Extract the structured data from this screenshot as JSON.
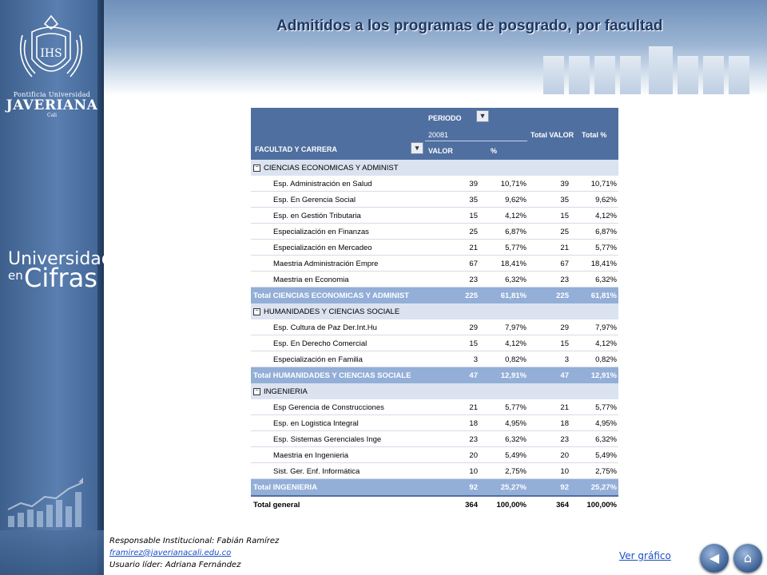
{
  "sidebar": {
    "institution_line1": "Pontificia Universidad",
    "institution_line2": "JAVERIANA",
    "institution_line3": "Cali",
    "brand_line1": "Universidad",
    "brand_line2": "en",
    "brand_line3": "Cifras"
  },
  "header": {
    "title": "Admitidos a los programas de posgrado, por facultad"
  },
  "pivot": {
    "periodo_label": "PERIODO",
    "period_value": "20081",
    "total_valor_label": "Total VALOR",
    "total_pct_label": "Total %",
    "row_field_label": "FACULTAD Y CARRERA",
    "valor_label": "VALOR",
    "pct_label": "%",
    "groups": [
      {
        "name": "CIENCIAS ECONOMICAS Y ADMINIST",
        "items": [
          {
            "name": "Esp. Administración en Salud",
            "valor": "39",
            "pct": "10,71%",
            "tvalor": "39",
            "tpct": "10,71%"
          },
          {
            "name": "Esp. En Gerencia Social",
            "valor": "35",
            "pct": "9,62%",
            "tvalor": "35",
            "tpct": "9,62%"
          },
          {
            "name": "Esp. en Gestión Tributaria",
            "valor": "15",
            "pct": "4,12%",
            "tvalor": "15",
            "tpct": "4,12%"
          },
          {
            "name": "Especialización en Finanzas",
            "valor": "25",
            "pct": "6,87%",
            "tvalor": "25",
            "tpct": "6,87%"
          },
          {
            "name": "Especialización en Mercadeo",
            "valor": "21",
            "pct": "5,77%",
            "tvalor": "21",
            "tpct": "5,77%"
          },
          {
            "name": "Maestria Administración Empre",
            "valor": "67",
            "pct": "18,41%",
            "tvalor": "67",
            "tpct": "18,41%"
          },
          {
            "name": "Maestria en Economia",
            "valor": "23",
            "pct": "6,32%",
            "tvalor": "23",
            "tpct": "6,32%"
          }
        ],
        "total": {
          "name": "Total CIENCIAS ECONOMICAS Y ADMINIST",
          "valor": "225",
          "pct": "61,81%",
          "tvalor": "225",
          "tpct": "61,81%"
        }
      },
      {
        "name": "HUMANIDADES Y CIENCIAS SOCIALE",
        "items": [
          {
            "name": "Esp. Cultura de Paz Der.Int.Hu",
            "valor": "29",
            "pct": "7,97%",
            "tvalor": "29",
            "tpct": "7,97%"
          },
          {
            "name": "Esp. En Derecho Comercial",
            "valor": "15",
            "pct": "4,12%",
            "tvalor": "15",
            "tpct": "4,12%"
          },
          {
            "name": "Especialización en Familia",
            "valor": "3",
            "pct": "0,82%",
            "tvalor": "3",
            "tpct": "0,82%"
          }
        ],
        "total": {
          "name": "Total HUMANIDADES Y CIENCIAS SOCIALE",
          "valor": "47",
          "pct": "12,91%",
          "tvalor": "47",
          "tpct": "12,91%"
        }
      },
      {
        "name": "INGENIERIA",
        "items": [
          {
            "name": "Esp Gerencia de Construcciones",
            "valor": "21",
            "pct": "5,77%",
            "tvalor": "21",
            "tpct": "5,77%"
          },
          {
            "name": "Esp. en Logistica Integral",
            "valor": "18",
            "pct": "4,95%",
            "tvalor": "18",
            "tpct": "4,95%"
          },
          {
            "name": "Esp. Sistemas Gerenciales Inge",
            "valor": "23",
            "pct": "6,32%",
            "tvalor": "23",
            "tpct": "6,32%"
          },
          {
            "name": "Maestria en Ingenieria",
            "valor": "20",
            "pct": "5,49%",
            "tvalor": "20",
            "tpct": "5,49%"
          },
          {
            "name": "Sist. Ger. Enf. Informática",
            "valor": "10",
            "pct": "2,75%",
            "tvalor": "10",
            "tpct": "2,75%"
          }
        ],
        "total": {
          "name": "Total INGENIERIA",
          "valor": "92",
          "pct": "25,27%",
          "tvalor": "92",
          "tpct": "25,27%"
        }
      }
    ],
    "grand_total": {
      "name": "Total general",
      "valor": "364",
      "pct": "100,00%",
      "tvalor": "364",
      "tpct": "100,00%"
    }
  },
  "footer": {
    "responsable": "Responsable Institucional: Fabián Ramírez",
    "email": "framirez@javerianacali.edu.co",
    "usuario": "Usuario líder: Adriana Fernández",
    "ver_grafico": "Ver gráfico"
  },
  "icons": {
    "back": "back-arrow-icon",
    "home": "home-icon",
    "filter": "filter-icon",
    "dropdown": "dropdown-arrow-icon"
  },
  "colors": {
    "header_blue": "#4f6fa0",
    "total_row": "#93afd8",
    "group_row": "#dbe3f0",
    "title": "#1f3864"
  }
}
